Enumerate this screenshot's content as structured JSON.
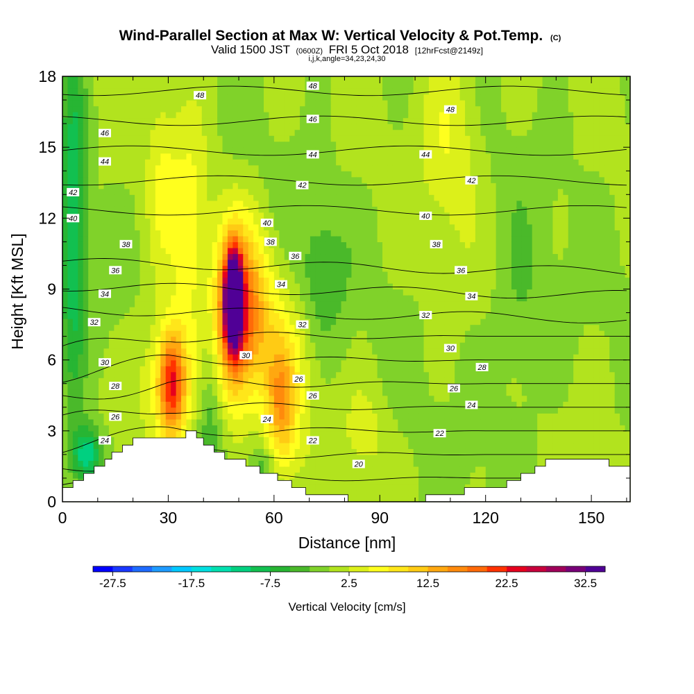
{
  "chart_data": {
    "type": "heatmap",
    "title": "Wind-Parallel Section at Max W: Vertical Velocity & Pot.Temp.",
    "title_mark": "(C)",
    "subtitle_parts": [
      "Valid 1500 JST",
      "(0600Z)",
      "FRI 5 Oct 2018",
      "[12hrFcst@2149z]"
    ],
    "subtitle2": "i,j,k,angle=34,23,24,30",
    "xlabel": "Distance [nm]",
    "ylabel": "Height [Kft MSL]",
    "xlim": [
      0,
      161
    ],
    "ylim": [
      0,
      18
    ],
    "x_ticks": [
      "0",
      "30",
      "60",
      "90",
      "120",
      "150"
    ],
    "x_tick_values": [
      0,
      30,
      60,
      90,
      120,
      150
    ],
    "y_ticks": [
      "0",
      "3",
      "6",
      "9",
      "12",
      "15",
      "18"
    ],
    "y_tick_values": [
      0,
      3,
      6,
      9,
      12,
      15,
      18
    ],
    "colorbar": {
      "label": "Vertical Velocity [cm/s]",
      "tick_labels": [
        "-27.5",
        "-17.5",
        "-7.5",
        "2.5",
        "12.5",
        "22.5",
        "32.5"
      ],
      "colors": [
        "#0000ff",
        "#1a38ff",
        "#1e6bff",
        "#1e9bff",
        "#00c8ff",
        "#00dfe0",
        "#00e0b0",
        "#00d080",
        "#12c050",
        "#27b533",
        "#4ab92a",
        "#80d22a",
        "#b2e31e",
        "#dcf01a",
        "#ffff1e",
        "#ffe61a",
        "#ffcb14",
        "#ffa810",
        "#ff8a0c",
        "#ff6a08",
        "#ff3200",
        "#e6001e",
        "#c8003c",
        "#a0005a",
        "#780078",
        "#500096"
      ]
    },
    "terrain_kft": [
      [
        0,
        0.6
      ],
      [
        3,
        0.6
      ],
      [
        3,
        0.9
      ],
      [
        6,
        0.9
      ],
      [
        6,
        1.2
      ],
      [
        9,
        1.2
      ],
      [
        9,
        1.5
      ],
      [
        12,
        1.5
      ],
      [
        12,
        1.8
      ],
      [
        14,
        1.8
      ],
      [
        14,
        2.1
      ],
      [
        17,
        2.1
      ],
      [
        17,
        2.4
      ],
      [
        20,
        2.4
      ],
      [
        20,
        2.7
      ],
      [
        35,
        2.7
      ],
      [
        35,
        3.0
      ],
      [
        38,
        3.0
      ],
      [
        38,
        2.7
      ],
      [
        40,
        2.7
      ],
      [
        40,
        2.4
      ],
      [
        43,
        2.4
      ],
      [
        43,
        2.1
      ],
      [
        46,
        2.1
      ],
      [
        46,
        1.8
      ],
      [
        52,
        1.8
      ],
      [
        52,
        1.5
      ],
      [
        56,
        1.5
      ],
      [
        56,
        1.2
      ],
      [
        61,
        1.2
      ],
      [
        61,
        0.9
      ],
      [
        65,
        0.9
      ],
      [
        65,
        0.6
      ],
      [
        69,
        0.6
      ],
      [
        69,
        0.3
      ],
      [
        81,
        0.3
      ],
      [
        81,
        0
      ],
      [
        103,
        0
      ],
      [
        103,
        0.3
      ],
      [
        114,
        0.3
      ],
      [
        114,
        0.6
      ],
      [
        126,
        0.6
      ],
      [
        126,
        0.9
      ],
      [
        130,
        0.9
      ],
      [
        130,
        1.2
      ],
      [
        134,
        1.2
      ],
      [
        134,
        1.5
      ],
      [
        137,
        1.5
      ],
      [
        137,
        1.8
      ],
      [
        155,
        1.8
      ],
      [
        155,
        1.5
      ],
      [
        161,
        1.5
      ]
    ],
    "w_features": [
      {
        "x": 48.5,
        "y": 8.6,
        "sx": 1.6,
        "sy": 1.3,
        "w": 42
      },
      {
        "x": 48.5,
        "y": 7.8,
        "sx": 4,
        "sy": 2.6,
        "w": 20
      },
      {
        "x": 55,
        "y": 8,
        "sx": 4,
        "sy": 2.5,
        "w": 9
      },
      {
        "x": 31,
        "y": 5,
        "sx": 2.6,
        "sy": 1.5,
        "w": 18
      },
      {
        "x": 30,
        "y": 5,
        "sx": 6,
        "sy": 2.2,
        "w": 7
      },
      {
        "x": 62,
        "y": 4,
        "sx": 3,
        "sy": 2,
        "w": 12
      },
      {
        "x": 66,
        "y": 6,
        "sx": 5,
        "sy": 3,
        "w": 4
      },
      {
        "x": 36,
        "y": 12,
        "sx": 4,
        "sy": 3.5,
        "w": 6
      },
      {
        "x": 28,
        "y": 14,
        "sx": 3,
        "sy": 3,
        "w": 4
      },
      {
        "x": 110,
        "y": 15.5,
        "sx": 6,
        "sy": 3,
        "w": 5
      },
      {
        "x": 86,
        "y": 3,
        "sx": 5,
        "sy": 1.5,
        "w": 3
      },
      {
        "x": 3,
        "y": 12,
        "sx": 2.5,
        "sy": 5.5,
        "w": -10
      },
      {
        "x": 7,
        "y": 2,
        "sx": 3,
        "sy": 0.8,
        "w": -13
      },
      {
        "x": 42,
        "y": 4,
        "sx": 2.5,
        "sy": 3,
        "w": -5
      },
      {
        "x": 73,
        "y": 9.5,
        "sx": 5,
        "sy": 2,
        "w": -5
      },
      {
        "x": 130,
        "y": 8,
        "sx": 5,
        "sy": 3,
        "w": -3
      },
      {
        "x": 57,
        "y": 1.5,
        "sx": 3,
        "sy": 0.6,
        "w": -4
      }
    ],
    "theta_levels": [
      20,
      22,
      24,
      26,
      28,
      30,
      32,
      34,
      36,
      38,
      40,
      42,
      44,
      46,
      48
    ],
    "theta_labels": [
      {
        "text": "20",
        "x": 84,
        "y": 1.6
      },
      {
        "text": "22",
        "x": 71,
        "y": 2.6
      },
      {
        "text": "22",
        "x": 107,
        "y": 2.9
      },
      {
        "text": "24",
        "x": 12,
        "y": 2.6
      },
      {
        "text": "24",
        "x": 58,
        "y": 3.5
      },
      {
        "text": "24",
        "x": 116,
        "y": 4.1
      },
      {
        "text": "26",
        "x": 15,
        "y": 3.6
      },
      {
        "text": "26",
        "x": 67,
        "y": 5.2
      },
      {
        "text": "26",
        "x": 71,
        "y": 4.5
      },
      {
        "text": "26",
        "x": 111,
        "y": 4.8
      },
      {
        "text": "28",
        "x": 15,
        "y": 4.9
      },
      {
        "text": "28",
        "x": 119,
        "y": 5.7
      },
      {
        "text": "30",
        "x": 12,
        "y": 5.9
      },
      {
        "text": "30",
        "x": 52,
        "y": 6.2
      },
      {
        "text": "30",
        "x": 110,
        "y": 6.5
      },
      {
        "text": "32",
        "x": 9,
        "y": 7.6
      },
      {
        "text": "32",
        "x": 68,
        "y": 7.5
      },
      {
        "text": "32",
        "x": 103,
        "y": 7.9
      },
      {
        "text": "34",
        "x": 12,
        "y": 8.8
      },
      {
        "text": "34",
        "x": 62,
        "y": 9.2
      },
      {
        "text": "34",
        "x": 116,
        "y": 8.7
      },
      {
        "text": "36",
        "x": 15,
        "y": 9.8
      },
      {
        "text": "36",
        "x": 66,
        "y": 10.4
      },
      {
        "text": "36",
        "x": 113,
        "y": 9.8
      },
      {
        "text": "38",
        "x": 18,
        "y": 10.9
      },
      {
        "text": "38",
        "x": 59,
        "y": 11.0
      },
      {
        "text": "38",
        "x": 106,
        "y": 10.9
      },
      {
        "text": "40",
        "x": 3,
        "y": 12.0
      },
      {
        "text": "40",
        "x": 58,
        "y": 11.8
      },
      {
        "text": "40",
        "x": 103,
        "y": 12.1
      },
      {
        "text": "42",
        "x": 3,
        "y": 13.1
      },
      {
        "text": "42",
        "x": 68,
        "y": 13.4
      },
      {
        "text": "42",
        "x": 116,
        "y": 13.6
      },
      {
        "text": "44",
        "x": 12,
        "y": 14.4
      },
      {
        "text": "44",
        "x": 71,
        "y": 14.7
      },
      {
        "text": "44",
        "x": 103,
        "y": 14.7
      },
      {
        "text": "46",
        "x": 12,
        "y": 15.6
      },
      {
        "text": "46",
        "x": 71,
        "y": 16.2
      },
      {
        "text": "48",
        "x": 39,
        "y": 17.2
      },
      {
        "text": "48",
        "x": 71,
        "y": 17.6
      },
      {
        "text": "48",
        "x": 110,
        "y": 16.6
      }
    ]
  }
}
